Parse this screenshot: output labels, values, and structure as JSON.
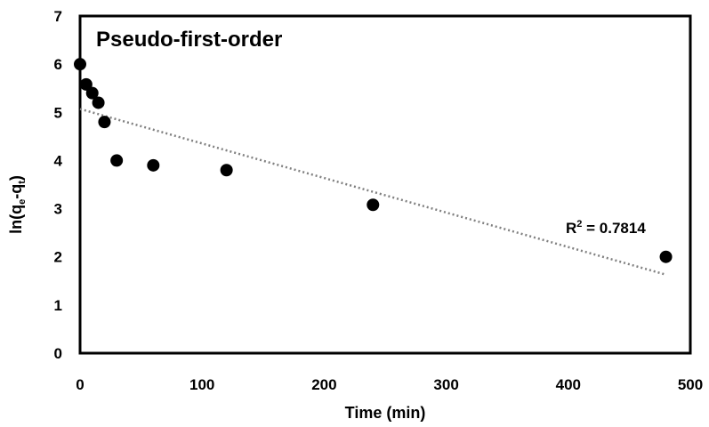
{
  "chart_data": {
    "type": "scatter",
    "title": "Pseudo-first-order",
    "xlabel": "Time (min)",
    "ylabel_main": "ln(q",
    "ylabel_sub_e": "e",
    "ylabel_dash": "-q",
    "ylabel_sub_t": "t",
    "ylabel_close": ")",
    "xlim": [
      0,
      500
    ],
    "ylim": [
      0,
      7
    ],
    "xticks": [
      0,
      100,
      200,
      300,
      400,
      500
    ],
    "yticks": [
      0,
      1,
      2,
      3,
      4,
      5,
      6,
      7
    ],
    "grid": false,
    "legend": "none",
    "series": [
      {
        "x": [
          0,
          5,
          10,
          15,
          20,
          30,
          60,
          120,
          240,
          480
        ],
        "y": [
          6.0,
          5.58,
          5.4,
          5.2,
          4.8,
          4.0,
          3.9,
          3.8,
          3.08,
          2.0
        ],
        "marker_color": "#000000"
      }
    ],
    "trendline": {
      "type": "linear",
      "style": "dotted",
      "color": "#808080",
      "x": [
        0,
        480
      ],
      "y": [
        5.07,
        1.63
      ],
      "annotation": {
        "prefix": "R",
        "superscript": "2",
        "text": " = 0.7814"
      }
    }
  }
}
